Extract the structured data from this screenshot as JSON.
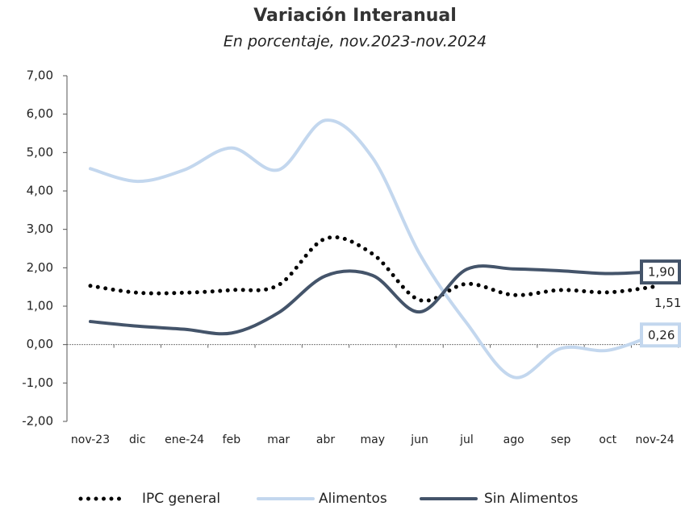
{
  "chart_data": {
    "type": "line",
    "title": "Variación Interanual",
    "subtitle": "En porcentaje, nov.2023-nov.2024",
    "categories": [
      "nov-23",
      "dic",
      "ene-24",
      "feb",
      "mar",
      "abr",
      "may",
      "jun",
      "jul",
      "ago",
      "sep",
      "oct",
      "nov-24"
    ],
    "series": [
      {
        "name": "IPC general",
        "color": "#000000",
        "style": "dotted",
        "values": [
          1.53,
          1.35,
          1.35,
          1.42,
          1.55,
          2.76,
          2.36,
          1.16,
          1.58,
          1.29,
          1.42,
          1.36,
          1.51
        ],
        "value_labels": [
          null,
          null,
          null,
          null,
          null,
          null,
          null,
          null,
          null,
          null,
          null,
          null,
          "1,51"
        ]
      },
      {
        "name": "Alimentos",
        "color": "#c3d7ee",
        "style": "solid",
        "values": [
          4.58,
          4.25,
          4.55,
          5.12,
          4.55,
          5.84,
          4.86,
          2.36,
          0.56,
          -0.85,
          -0.1,
          -0.15,
          0.26
        ],
        "value_labels": [
          null,
          null,
          null,
          null,
          null,
          null,
          null,
          null,
          null,
          null,
          null,
          null,
          "0,26"
        ]
      },
      {
        "name": "Sin Alimentos",
        "color": "#44546a",
        "style": "solid",
        "values": [
          0.6,
          0.48,
          0.4,
          0.3,
          0.83,
          1.79,
          1.8,
          0.85,
          1.96,
          1.97,
          1.92,
          1.85,
          1.9
        ],
        "value_labels": [
          null,
          null,
          null,
          null,
          null,
          null,
          null,
          null,
          null,
          null,
          null,
          null,
          "1,90"
        ]
      }
    ],
    "ylim": [
      -2,
      7
    ],
    "yticks": [
      {
        "value": -2,
        "label": "-2,00"
      },
      {
        "value": -1,
        "label": "-1,00"
      },
      {
        "value": 0,
        "label": "0,00"
      },
      {
        "value": 1,
        "label": "1,00"
      },
      {
        "value": 2,
        "label": "2,00"
      },
      {
        "value": 3,
        "label": "3,00"
      },
      {
        "value": 4,
        "label": "4,00"
      },
      {
        "value": 5,
        "label": "5,00"
      },
      {
        "value": 6,
        "label": "6,00"
      },
      {
        "value": 7,
        "label": "7,00"
      }
    ],
    "legend": "bottom"
  }
}
